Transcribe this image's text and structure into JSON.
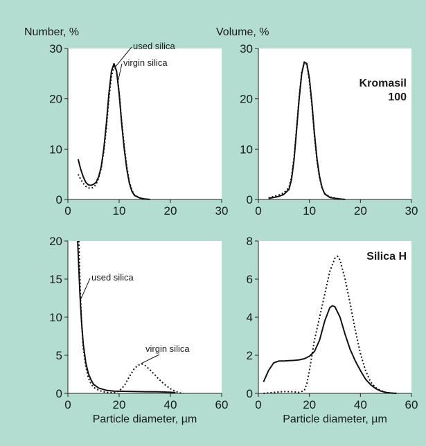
{
  "chart_data": [
    {
      "type": "line",
      "title": "",
      "ylabel": "Number, %",
      "xlabel": "",
      "xlim": [
        0,
        30
      ],
      "ylim": [
        0,
        30
      ],
      "xticks": [
        0,
        10,
        20,
        30
      ],
      "yticks": [
        0,
        10,
        20,
        30
      ],
      "series": [
        {
          "name": "used silica",
          "style": "solid",
          "x": [
            2,
            2.5,
            3,
            3.5,
            4,
            4.5,
            5,
            5.5,
            6,
            6.5,
            7,
            7.5,
            8,
            8.5,
            9,
            9.5,
            10,
            10.5,
            11,
            11.5,
            12,
            12.5,
            13,
            14,
            15,
            16
          ],
          "y": [
            8,
            6,
            4.5,
            3.4,
            2.9,
            2.8,
            3.0,
            3.4,
            4.5,
            6.5,
            10,
            15,
            21,
            25.5,
            27,
            25.5,
            21,
            15,
            10,
            6,
            3.2,
            1.6,
            0.8,
            0.3,
            0.1,
            0
          ]
        },
        {
          "name": "virgin silica",
          "style": "dotted",
          "x": [
            2,
            2.5,
            3,
            3.5,
            4,
            4.5,
            5,
            5.5,
            6,
            6.5,
            7,
            7.5,
            8,
            8.5,
            9,
            9.5,
            10,
            10.5,
            11,
            11.5,
            12,
            12.5,
            13,
            14,
            15,
            16
          ],
          "y": [
            5,
            4,
            3.2,
            2.6,
            2.3,
            2.2,
            2.4,
            3.0,
            4.2,
            6.2,
            9.5,
            14,
            20,
            24.5,
            26.5,
            25.5,
            21.5,
            15.5,
            10.5,
            6.5,
            3.5,
            1.8,
            0.9,
            0.3,
            0.1,
            0
          ]
        }
      ],
      "annotations": [
        {
          "text": "used silica",
          "series": 0,
          "x": 9.3,
          "y": 26.4
        },
        {
          "text": "virgin silica",
          "series": 1,
          "x": 9.8,
          "y": 23.6
        }
      ]
    },
    {
      "type": "line",
      "title": "Kromasil\n100",
      "ylabel": "Volume, %",
      "xlabel": "",
      "xlim": [
        0,
        30
      ],
      "ylim": [
        0,
        30
      ],
      "xticks": [
        0,
        10,
        20,
        30
      ],
      "yticks": [
        0,
        10,
        20,
        30
      ],
      "series": [
        {
          "name": "",
          "style": "solid",
          "x": [
            2,
            3,
            4,
            5,
            6,
            6.5,
            7,
            7.5,
            8,
            8.5,
            9,
            9.5,
            10,
            10.5,
            11,
            11.5,
            12,
            12.5,
            13,
            14,
            15,
            16,
            17
          ],
          "y": [
            0.2,
            0.4,
            0.6,
            1.0,
            2.0,
            4.0,
            8.0,
            14,
            20,
            25,
            27.3,
            27,
            24,
            19,
            13,
            8,
            4.5,
            2.3,
            1.1,
            0.4,
            0.2,
            0.1,
            0
          ]
        },
        {
          "name": "",
          "style": "dotted",
          "x": [
            2,
            3,
            4,
            5,
            6,
            6.5,
            7,
            7.5,
            8,
            8.5,
            9,
            9.5,
            10,
            10.5,
            11,
            11.5,
            12,
            12.5,
            13,
            14,
            15,
            16,
            17
          ],
          "y": [
            0.3,
            0.6,
            0.9,
            1.3,
            2.4,
            4.5,
            8.5,
            14.5,
            20.5,
            25.3,
            27.3,
            26.8,
            23.5,
            18.5,
            12.5,
            7.5,
            4.2,
            2.2,
            1.2,
            0.5,
            0.3,
            0.1,
            0
          ]
        }
      ]
    },
    {
      "type": "line",
      "title": "",
      "ylabel": "",
      "xlabel": "Particle diameter, µm",
      "xlim": [
        0,
        60
      ],
      "ylim": [
        0,
        20
      ],
      "xticks": [
        0,
        20,
        40,
        60
      ],
      "yticks": [
        0,
        5,
        10,
        15,
        20
      ],
      "series": [
        {
          "name": "used silica",
          "style": "solid",
          "x": [
            3.8,
            4.2,
            4.7,
            5.3,
            6,
            7,
            8,
            9,
            10,
            12,
            15,
            18,
            20,
            25,
            30,
            35,
            40,
            42
          ],
          "y": [
            20,
            17,
            13,
            9.5,
            6.5,
            4.0,
            2.6,
            1.8,
            1.2,
            0.7,
            0.4,
            0.3,
            0.28,
            0.25,
            0.22,
            0.2,
            0.15,
            0.1
          ]
        },
        {
          "name": "virgin silica",
          "style": "dotted",
          "x": [
            4.3,
            4.6,
            5,
            5.5,
            6,
            7,
            8,
            9,
            10,
            12,
            14,
            16,
            18,
            20,
            22,
            24,
            26,
            28,
            29,
            30,
            32,
            34,
            36,
            38,
            40,
            42,
            44,
            45
          ],
          "y": [
            20,
            16,
            12,
            8.5,
            6.0,
            3.5,
            2.0,
            1.3,
            0.8,
            0.4,
            0.2,
            0.1,
            0.1,
            0.3,
            1.0,
            2.2,
            3.3,
            3.8,
            3.85,
            3.7,
            3.1,
            2.4,
            1.7,
            1.1,
            0.6,
            0.25,
            0.05,
            0
          ]
        }
      ],
      "annotations": [
        {
          "text": "used silica",
          "series": 0,
          "x": 4.8,
          "y": 12.2
        },
        {
          "text": "virgin silica",
          "series": 1,
          "x": 28.5,
          "y": 3.9
        }
      ]
    },
    {
      "type": "line",
      "title": "Silica H",
      "ylabel": "",
      "xlabel": "Particle diameter, µm",
      "xlim": [
        0,
        60
      ],
      "ylim": [
        0,
        8
      ],
      "xticks": [
        0,
        20,
        40,
        60
      ],
      "yticks": [
        0,
        2,
        4,
        6,
        8
      ],
      "series": [
        {
          "name": "",
          "style": "solid",
          "x": [
            2,
            4,
            6,
            8,
            10,
            12,
            14,
            16,
            18,
            20,
            22,
            24,
            26,
            28,
            29,
            30,
            32,
            34,
            36,
            38,
            40,
            42,
            44,
            46,
            48,
            50,
            52,
            54
          ],
          "y": [
            0.6,
            1.2,
            1.6,
            1.7,
            1.7,
            1.72,
            1.73,
            1.76,
            1.82,
            1.95,
            2.2,
            2.8,
            3.8,
            4.5,
            4.6,
            4.55,
            4.0,
            3.1,
            2.3,
            1.7,
            1.2,
            0.75,
            0.45,
            0.25,
            0.12,
            0.05,
            0.02,
            0
          ]
        },
        {
          "name": "",
          "style": "dotted",
          "x": [
            2,
            6,
            10,
            14,
            16,
            18,
            19,
            20,
            22,
            24,
            26,
            28,
            30,
            31,
            32,
            34,
            36,
            38,
            40,
            42,
            44,
            46,
            48,
            50,
            52,
            55
          ],
          "y": [
            0,
            0.05,
            0.1,
            0.08,
            0.05,
            0.15,
            0.5,
            1.2,
            2.8,
            4.0,
            5.2,
            6.4,
            7.1,
            7.2,
            7.0,
            6.0,
            4.7,
            3.3,
            2.1,
            1.2,
            0.6,
            0.3,
            0.15,
            0.05,
            0.02,
            0
          ]
        }
      ]
    }
  ]
}
